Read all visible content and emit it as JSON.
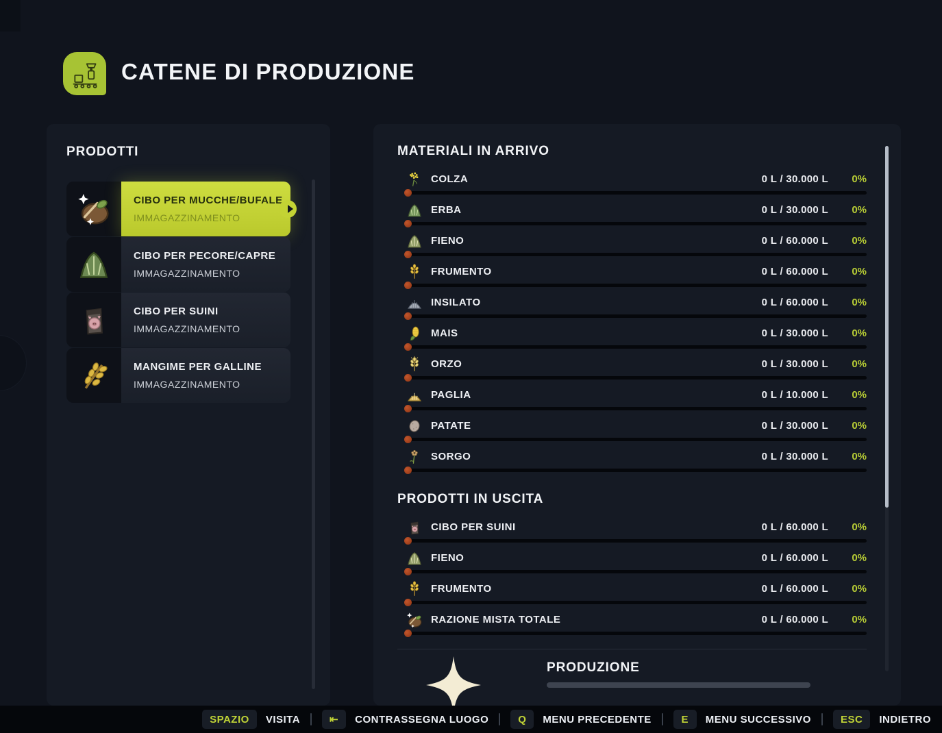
{
  "colors": {
    "accent_green": "#c3d334",
    "key_text_green": "#c0d336",
    "percent_green": "#b8cd35",
    "header_icon_green": "#a7c334",
    "progress_dot_red": "#a84323",
    "page_background": "#10141d"
  },
  "header": {
    "title": "CATENE DI PRODUZIONE",
    "icon": "production-chain-icon"
  },
  "sidebar": {
    "title": "PRODOTTI",
    "items": [
      {
        "label": "CIBO PER MUCCHE/BUFALE",
        "sublabel": "IMMAGAZZINAMENTO",
        "icon": "cow-food-icon",
        "selected": true
      },
      {
        "label": "CIBO PER PECORE/CAPRE",
        "sublabel": "IMMAGAZZINAMENTO",
        "icon": "sheep-goat-food-icon",
        "selected": false
      },
      {
        "label": "CIBO PER SUINI",
        "sublabel": "IMMAGAZZINAMENTO",
        "icon": "pig-food-icon",
        "selected": false
      },
      {
        "label": "MANGIME PER GALLINE",
        "sublabel": "IMMAGAZZINAMENTO",
        "icon": "chicken-feed-icon",
        "selected": false
      }
    ]
  },
  "main": {
    "incoming": {
      "title": "MATERIALI IN ARRIVO",
      "rows": [
        {
          "name": "COLZA",
          "value": "0 L / 30.000 L",
          "percent": "0%",
          "icon": "canola-icon"
        },
        {
          "name": "ERBA",
          "value": "0 L / 30.000 L",
          "percent": "0%",
          "icon": "grass-icon"
        },
        {
          "name": "FIENO",
          "value": "0 L / 60.000 L",
          "percent": "0%",
          "icon": "hay-icon"
        },
        {
          "name": "FRUMENTO",
          "value": "0 L / 60.000 L",
          "percent": "0%",
          "icon": "wheat-icon"
        },
        {
          "name": "INSILATO",
          "value": "0 L / 60.000 L",
          "percent": "0%",
          "icon": "silage-icon"
        },
        {
          "name": "MAIS",
          "value": "0 L / 30.000 L",
          "percent": "0%",
          "icon": "corn-icon"
        },
        {
          "name": "ORZO",
          "value": "0 L / 30.000 L",
          "percent": "0%",
          "icon": "barley-icon"
        },
        {
          "name": "PAGLIA",
          "value": "0 L / 10.000 L",
          "percent": "0%",
          "icon": "straw-icon"
        },
        {
          "name": "PATATE",
          "value": "0 L / 30.000 L",
          "percent": "0%",
          "icon": "potato-icon"
        },
        {
          "name": "SORGO",
          "value": "0 L / 30.000 L",
          "percent": "0%",
          "icon": "sorghum-icon"
        }
      ]
    },
    "outgoing": {
      "title": "PRODOTTI IN USCITA",
      "rows": [
        {
          "name": "CIBO PER SUINI",
          "value": "0 L / 60.000 L",
          "percent": "0%",
          "icon": "pig-food-icon"
        },
        {
          "name": "FIENO",
          "value": "0 L / 60.000 L",
          "percent": "0%",
          "icon": "hay-icon"
        },
        {
          "name": "FRUMENTO",
          "value": "0 L / 60.000 L",
          "percent": "0%",
          "icon": "wheat-icon"
        },
        {
          "name": "RAZIONE MISTA TOTALE",
          "value": "0 L / 60.000 L",
          "percent": "0%",
          "icon": "tmr-icon"
        }
      ]
    },
    "production": {
      "title": "PRODUZIONE",
      "progress_percent": 0,
      "icon": "tmr-sparkle-icon"
    }
  },
  "footer": {
    "shortcuts": [
      {
        "key": "SPAZIO",
        "key_icon": "",
        "label": "VISITA"
      },
      {
        "key": "⇤",
        "key_icon": "arrow-to-bar-icon",
        "label": "CONTRASSEGNA LUOGO"
      },
      {
        "key": "Q",
        "key_icon": "",
        "label": "MENU PRECEDENTE"
      },
      {
        "key": "E",
        "key_icon": "",
        "label": "MENU SUCCESSIVO"
      },
      {
        "key": "ESC",
        "key_icon": "",
        "label": "INDIETRO"
      }
    ]
  }
}
